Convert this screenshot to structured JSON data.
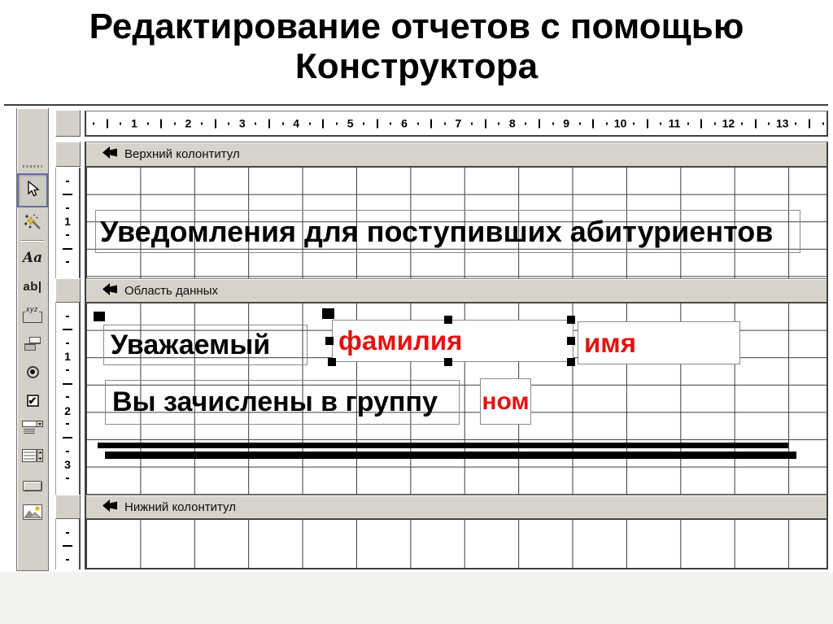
{
  "page": {
    "title": "Редактирование отчетов с помощью Конструктора"
  },
  "designer": {
    "sections": [
      {
        "label": "Верхний колонтитул"
      },
      {
        "label": "Область данных"
      },
      {
        "label": "Нижний колонтитул"
      }
    ],
    "ruler_h_numbers": [
      "1",
      "2",
      "3",
      "4",
      "5",
      "6",
      "7",
      "8",
      "9",
      "10",
      "11",
      "12",
      "13"
    ],
    "ruler_v": {
      "header": [
        "1"
      ],
      "detail": [
        "1",
        "2",
        "3"
      ],
      "footer": []
    },
    "controls": {
      "report_heading": "Уведомления для поступивших абитуриентов",
      "greeting_label": "Уважаемый",
      "surname_field": "фамилия",
      "firstname_field": "имя",
      "group_label": "Вы зачислены в группу",
      "group_number_field": "ном"
    }
  },
  "toolbox": {
    "label_tool_glyph": "Aa",
    "textbox_tool_glyph": "ab|",
    "optiongroup_tool_glyph": "xyz"
  },
  "colors": {
    "chrome": "#d4d0c8",
    "grid_line": "#3c3c3c",
    "field_text_red": "#e51212",
    "label_text": "#000000"
  }
}
